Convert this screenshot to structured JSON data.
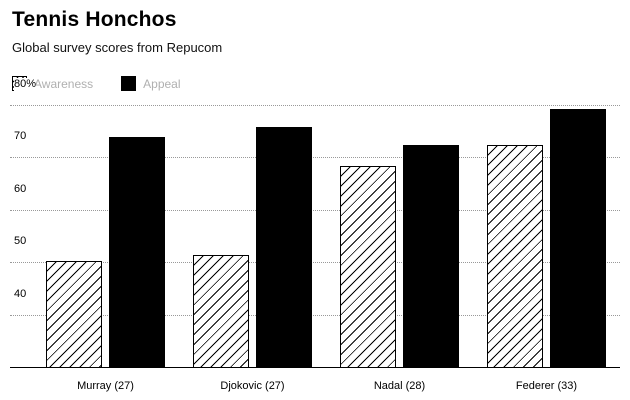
{
  "header": {
    "title": "Tennis Honchos",
    "subtitle": "Global survey scores from Repucom"
  },
  "legend": {
    "items": [
      {
        "label": "Awareness",
        "style": "hatched"
      },
      {
        "label": "Appeal",
        "style": "solid"
      }
    ]
  },
  "colors": {
    "bar_fill": "#000000",
    "hatch_line": "#000000",
    "grid": "#999999",
    "axis": "#000000",
    "legend_text": "#b0b0b0"
  },
  "chart_data": {
    "type": "bar",
    "title": "Tennis Honchos",
    "subtitle": "Global survey scores from Repucom",
    "categories": [
      "Murray (27)",
      "Djokovic (27)",
      "Nadal (28)",
      "Federer (33)"
    ],
    "series": [
      {
        "name": "Awareness",
        "fill": "hatched",
        "values": [
          50.5,
          51.5,
          68.5,
          72.5
        ]
      },
      {
        "name": "Appeal",
        "fill": "solid",
        "values": [
          74,
          76,
          72.5,
          79.5
        ]
      }
    ],
    "xlabel": "",
    "ylabel": "",
    "ylim": [
      30,
      80
    ],
    "yticks": [
      {
        "value": 40,
        "label": "40"
      },
      {
        "value": 50,
        "label": "50"
      },
      {
        "value": 60,
        "label": "60"
      },
      {
        "value": 70,
        "label": "70"
      },
      {
        "value": 80,
        "label": "80%"
      }
    ],
    "grid": "dotted horizontal",
    "legend_position": "top-left"
  }
}
